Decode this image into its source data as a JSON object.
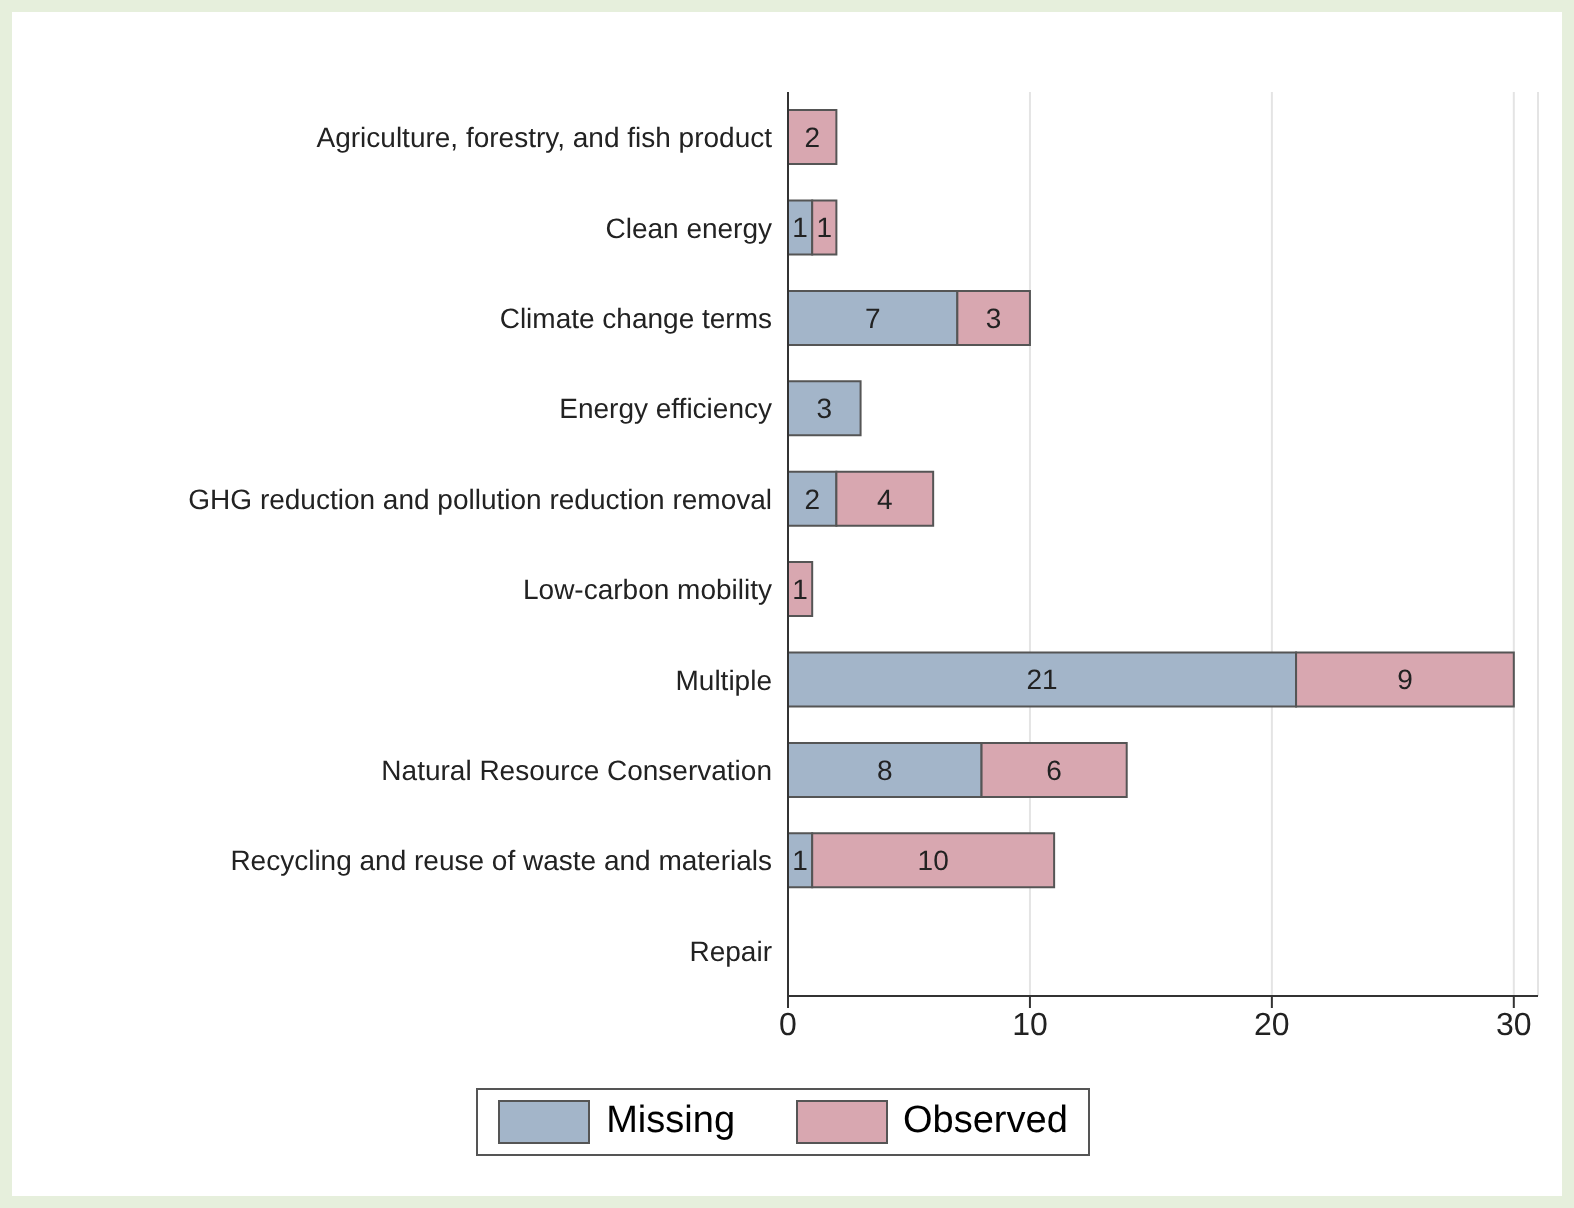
{
  "chart_data": {
    "type": "bar",
    "orientation": "horizontal",
    "stacked": true,
    "categories": [
      "Agriculture, forestry, and fish product",
      "Clean energy",
      "Climate change terms",
      "Energy efficiency",
      "GHG reduction and pollution reduction removal",
      "Low-carbon mobility",
      "Multiple",
      "Natural Resource Conservation",
      "Recycling and reuse of waste and materials",
      "Repair"
    ],
    "series": [
      {
        "name": "Missing",
        "color": "#a3b5c9",
        "values": [
          null,
          1,
          7,
          3,
          2,
          null,
          21,
          8,
          1,
          null
        ]
      },
      {
        "name": "Observed",
        "color": "#d8a7b0",
        "values": [
          2,
          1,
          3,
          null,
          4,
          1,
          9,
          6,
          10,
          null
        ]
      }
    ],
    "xlim": [
      0,
      31
    ],
    "xticks": [
      0,
      10,
      20,
      30
    ],
    "grid": "x",
    "legend": "bottom",
    "data_labels": true
  }
}
